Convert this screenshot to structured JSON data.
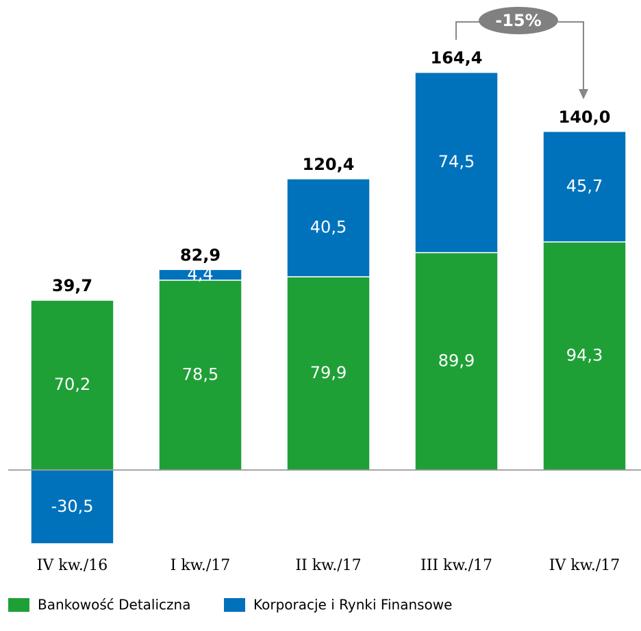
{
  "chart_data": {
    "type": "stacked_bar",
    "categories": [
      "IV kw./16",
      "I kw./17",
      "II kw./17",
      "III kw./17",
      "IV kw./17"
    ],
    "series": [
      {
        "name": "Bankowość Detaliczna",
        "color": "#1fa037",
        "values": [
          70.2,
          78.5,
          79.9,
          89.9,
          94.3
        ],
        "value_labels": [
          "70,2",
          "78,5",
          "79,9",
          "89,9",
          "94,3"
        ]
      },
      {
        "name": "Korporacje i Rynki Finansowe",
        "color": "#0072bc",
        "values": [
          -30.5,
          4.4,
          40.5,
          74.5,
          45.7
        ],
        "value_labels": [
          "-30,5",
          "4,4",
          "40,5",
          "74,5",
          "45,7"
        ]
      }
    ],
    "totals": [
      39.7,
      82.9,
      120.4,
      164.4,
      140.0
    ],
    "total_labels": [
      "39,7",
      "82,9",
      "120,4",
      "164,4",
      "140,0"
    ],
    "annotation": "-15%"
  }
}
